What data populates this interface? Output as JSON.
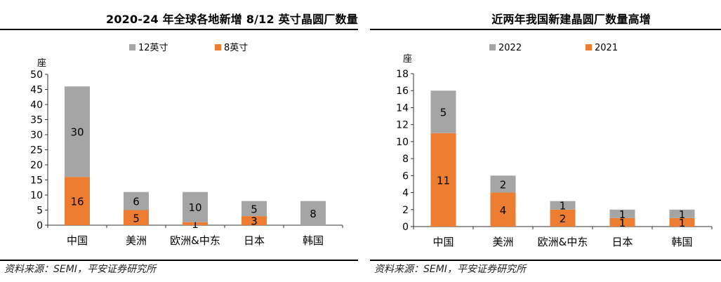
{
  "source_note": "资料来源：SEMI，平安证券研究所",
  "chart_data": [
    {
      "type": "bar",
      "stacked": true,
      "title": "2020-24 年全球各地新增 8/12 英寸晶圆厂数量",
      "ylabel": "座",
      "xlabel": "",
      "ylim": [
        0,
        50
      ],
      "yticks": [
        0,
        5,
        10,
        15,
        20,
        25,
        30,
        35,
        40,
        45,
        50
      ],
      "categories": [
        "中国",
        "美洲",
        "欧洲&中东",
        "日本",
        "韩国"
      ],
      "series": [
        {
          "name": "8英寸",
          "color": "#ED7D31",
          "values": [
            16,
            5,
            1,
            3,
            0
          ],
          "labels": [
            "16",
            "5",
            "1",
            "3",
            ""
          ]
        },
        {
          "name": "12英寸",
          "color": "#A5A5A5",
          "values": [
            30,
            6,
            10,
            5,
            8
          ],
          "labels": [
            "30",
            "6",
            "10",
            "5",
            "8"
          ]
        }
      ],
      "legend_order": [
        "12英寸",
        "8英寸"
      ],
      "legend_position": "top",
      "grid": false
    },
    {
      "type": "bar",
      "stacked": true,
      "title": "近两年我国新建晶圆厂数量高增",
      "ylabel": "座",
      "xlabel": "",
      "ylim": [
        0,
        18
      ],
      "yticks": [
        0,
        2,
        4,
        6,
        8,
        10,
        12,
        14,
        16,
        18
      ],
      "categories": [
        "中国",
        "美洲",
        "欧洲&中东",
        "日本",
        "韩国"
      ],
      "series": [
        {
          "name": "2021",
          "color": "#ED7D31",
          "values": [
            11,
            4,
            2,
            1,
            1
          ],
          "labels": [
            "11",
            "4",
            "2",
            "1",
            "1"
          ]
        },
        {
          "name": "2022",
          "color": "#A5A5A5",
          "values": [
            5,
            2,
            1,
            1,
            1
          ],
          "labels": [
            "5",
            "2",
            "1",
            "1",
            "1"
          ]
        }
      ],
      "legend_order": [
        "2022",
        "2021"
      ],
      "legend_position": "top",
      "grid": false
    }
  ]
}
